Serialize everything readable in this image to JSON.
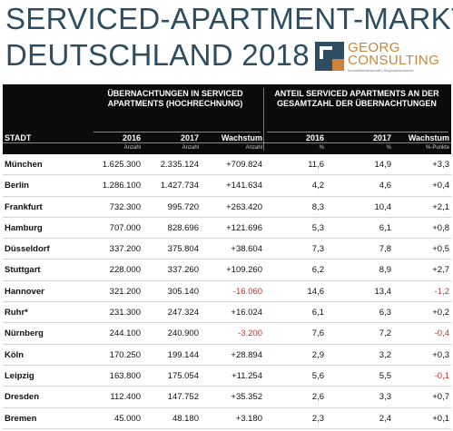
{
  "title": {
    "line1": "SERVICED-APARTMENT-MARKT",
    "line2": "DEUTSCHLAND 2018"
  },
  "logo": {
    "name_line1": "GEORG",
    "name_line2": "CONSULTING",
    "tagline": "Immobilienwirtschaft | Regionalökonomie",
    "colors": {
      "mark_dark": "#2e4d62",
      "mark_light": "#c9853c",
      "text": "#c9853c"
    }
  },
  "colors": {
    "title": "#2e4d62",
    "header_bg": "#0b0b0b",
    "negative": "#d0312d"
  },
  "table": {
    "group1": "ÜBERNACHTUNGEN IN SERVICED APARTMENTS (HOCHRECHNUNG)",
    "group2": "ANTEIL SERVICED APARTMENTS AN DER GESAMTZAHL DER ÜBERNACHTUNGEN",
    "col_city": "STADT",
    "col_2016": "2016",
    "col_2017": "2017",
    "col_growth": "Wachstum",
    "col_2016b": "2016",
    "col_2017b": "2017",
    "col_growthb": "Wachstum",
    "unit_count1": "Anzahl",
    "unit_count2": "Anzahl",
    "unit_count3": "Anzahl",
    "unit_pct1": "%",
    "unit_pct2": "%",
    "unit_pp": "%-Punkte",
    "rows": [
      {
        "city": "München",
        "n2016": "1.625.300",
        "n2017": "2.335.124",
        "growth": "+709.824",
        "s2016": "11,6",
        "s2017": "14,9",
        "sgrowth": "+3,3",
        "neg_g": false,
        "neg_s": false
      },
      {
        "city": "Berlin",
        "n2016": "1.286.100",
        "n2017": "1.427.734",
        "growth": "+141.634",
        "s2016": "4,2",
        "s2017": "4,6",
        "sgrowth": "+0,4",
        "neg_g": false,
        "neg_s": false
      },
      {
        "city": "Frankfurt",
        "n2016": "732.300",
        "n2017": "995.720",
        "growth": "+263.420",
        "s2016": "8,3",
        "s2017": "10,4",
        "sgrowth": "+2,1",
        "neg_g": false,
        "neg_s": false
      },
      {
        "city": "Hamburg",
        "n2016": "707.000",
        "n2017": "828.696",
        "growth": "+121.696",
        "s2016": "5,3",
        "s2017": "6,1",
        "sgrowth": "+0,8",
        "neg_g": false,
        "neg_s": false
      },
      {
        "city": "Düsseldorf",
        "n2016": "337.200",
        "n2017": "375.804",
        "growth": "+38.604",
        "s2016": "7,3",
        "s2017": "7,8",
        "sgrowth": "+0,5",
        "neg_g": false,
        "neg_s": false
      },
      {
        "city": "Stuttgart",
        "n2016": "228.000",
        "n2017": "337.260",
        "growth": "+109.260",
        "s2016": "6,2",
        "s2017": "8,9",
        "sgrowth": "+2,7",
        "neg_g": false,
        "neg_s": false
      },
      {
        "city": "Hannover",
        "n2016": "321.200",
        "n2017": "305.140",
        "growth": "-16.060",
        "s2016": "14,6",
        "s2017": "13,4",
        "sgrowth": "-1,2",
        "neg_g": true,
        "neg_s": true
      },
      {
        "city": "Ruhr*",
        "n2016": "231.300",
        "n2017": "247.324",
        "growth": "+16.024",
        "s2016": "6,1",
        "s2017": "6,3",
        "sgrowth": "+0,2",
        "neg_g": false,
        "neg_s": false
      },
      {
        "city": "Nürnberg",
        "n2016": "244.100",
        "n2017": "240.900",
        "growth": "-3.200",
        "s2016": "7,6",
        "s2017": "7,2",
        "sgrowth": "-0,4",
        "neg_g": true,
        "neg_s": true
      },
      {
        "city": "Köln",
        "n2016": "170.250",
        "n2017": "199.144",
        "growth": "+28.894",
        "s2016": "2,9",
        "s2017": "3,2",
        "sgrowth": "+0,3",
        "neg_g": false,
        "neg_s": false
      },
      {
        "city": "Leipzig",
        "n2016": "163.800",
        "n2017": "175.054",
        "growth": "+11.254",
        "s2016": "5,6",
        "s2017": "5,5",
        "sgrowth": "-0,1",
        "neg_g": false,
        "neg_s": true
      },
      {
        "city": "Dresden",
        "n2016": "112.400",
        "n2017": "147.752",
        "growth": "+35.352",
        "s2016": "2,6",
        "s2017": "3,3",
        "sgrowth": "+0,7",
        "neg_g": false,
        "neg_s": false
      },
      {
        "city": "Bremen",
        "n2016": "45.000",
        "n2017": "48.180",
        "growth": "+3.180",
        "s2016": "2,3",
        "s2017": "2,4",
        "sgrowth": "+0,1",
        "neg_g": false,
        "neg_s": false
      }
    ]
  }
}
